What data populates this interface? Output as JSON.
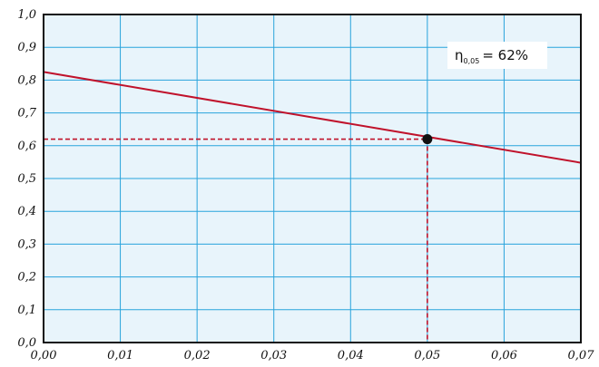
{
  "chart_data": {
    "type": "line",
    "title": "",
    "xlabel": "",
    "ylabel": "",
    "xlim": [
      0,
      0.07
    ],
    "ylim": [
      0,
      1.0
    ],
    "grid": true,
    "x_ticks": [
      "0,00",
      "0,01",
      "0,02",
      "0,03",
      "0,04",
      "0,05",
      "0,06",
      "0,07"
    ],
    "y_ticks": [
      "0,0",
      "0,1",
      "0,2",
      "0,3",
      "0,4",
      "0,5",
      "0,6",
      "0,7",
      "0,8",
      "0,9",
      "1,0"
    ],
    "series": [
      {
        "x": [
          0,
          0.07
        ],
        "y": [
          0.825,
          0.548
        ]
      }
    ],
    "highlight_point": {
      "x": 0.05,
      "y": 0.62
    },
    "annotation": {
      "symbol": "η",
      "subscript": "0,05",
      "text": "= 62%"
    },
    "colors": {
      "plot_background": "#e8f4fb",
      "grid": "#29a3dc",
      "line": "#c0122b",
      "guide": "#c0122b",
      "point": "#111111",
      "frame": "#111111"
    }
  }
}
